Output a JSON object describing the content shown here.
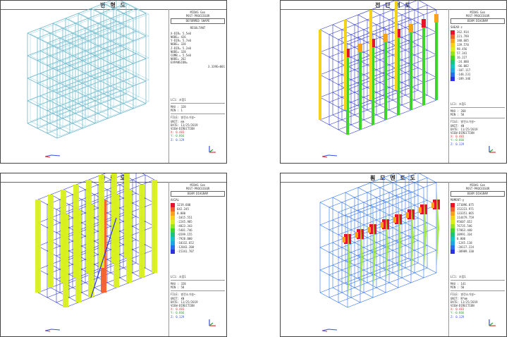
{
  "panels": [
    {
      "title": "변 형 도"
    },
    {
      "title": "전 단 력 도"
    },
    {
      "title": "축 력 도"
    },
    {
      "title": "휨 모 멘 트 도"
    }
  ],
  "p1_side": {
    "head": [
      "MIDAS Gen",
      "POST-PROCESSOR",
      "DEFORMED SHAPE"
    ],
    "box": "RESULTANT",
    "lines": [
      "X-DIR= 5.5e0",
      "NODE= 426",
      "Y-DIR= 5.7e0",
      "NODE= 328",
      "Z-DIR= 5.2e0",
      "NODE= 328",
      "COMB.= 5.5e0",
      "NODE= 262",
      "EXPANSION=",
      "3.339E+001"
    ],
    "foot": [
      "LC1: 조합1",
      "MAX : 328",
      "MIN : 1",
      "FILE: 발전소가설~",
      "UNIT: mm",
      "DATE: 11/25/2019",
      "VIEW-DIRECTION"
    ],
    "xyz": [
      "X: 0.483",
      "Y:-0.866",
      "Z: 0.129"
    ]
  },
  "p2_side": {
    "head": [
      "MIDAS Gen",
      "POST-PROCESSOR",
      "BEAM DIAGRAM"
    ],
    "sub": "SHEAR-z",
    "legend": [
      "262.914",
      "221.799",
      "180.685",
      "139.570",
      "98.456",
      "57.341",
      "16.227",
      "-24.888",
      "-66.002",
      "-107.117",
      "-148.231",
      "-189.346"
    ],
    "foot": [
      "LC1: 조합1",
      "MAX : 268",
      "MIN : 58",
      "FILE: 발전소가설~",
      "UNIT: kN",
      "DATE: 11/25/2019",
      "VIEW-DIRECTION"
    ],
    "xyz": [
      "X: 0.483",
      "Y:-0.866",
      "Z: 0.129"
    ]
  },
  "p3_side": {
    "head": [
      "MIDAS Gen",
      "POST-PROCESSOR",
      "BEAM DIAGRAM"
    ],
    "sub": "AXIAL",
    "legend": [
      "1219.600",
      "642.245",
      "0.000",
      "-1015.551",
      "-2245.985",
      "-4023.343",
      "-5401.746",
      "-6599.155",
      "-7920.000",
      "-10332.652",
      "-12843.200",
      "-15341.707"
    ],
    "foot": [
      "LC1: 조합1",
      "MAX : 328",
      "MIN : 58",
      "FILE: 발전소가설~",
      "UNIT: kN",
      "DATE: 11/25/2019",
      "VIEW-DIRECTION"
    ],
    "xyz": [
      "X: 0.483",
      "Y:-0.866",
      "Z: 0.129"
    ]
  },
  "p4_side": {
    "head": [
      "MIDAS Gen",
      "POST-PROCESSOR",
      "BEAM DIAGRAM"
    ],
    "sub": "MOMENT-y",
    "legend": [
      "171096.075",
      "152223.971",
      "133351.865",
      "114479.759",
      "95607.652",
      "76735.546",
      "57863.440",
      "38991.334",
      "0.000",
      "-1245.118",
      "-20117.224",
      "-38989.330"
    ],
    "foot": [
      "LC1: 조합1",
      "MAX : 141",
      "MIN : 50",
      "FILE: 발전소가설~",
      "UNIT: N*mm",
      "DATE: 11/25/2019",
      "VIEW-DIRECTION"
    ],
    "xyz": [
      "X: 0.483",
      "Y:-0.866",
      "Z: 0.129"
    ]
  },
  "colors": {
    "frame": "#6fb7c9",
    "legend": [
      "#e8132a",
      "#f2602a",
      "#f7a21c",
      "#f5d21a",
      "#d9f01c",
      "#93e51f",
      "#3dd42b",
      "#19c57a",
      "#19c2c2",
      "#1fa5e6",
      "#2a6ef0",
      "#2b33e0"
    ]
  }
}
